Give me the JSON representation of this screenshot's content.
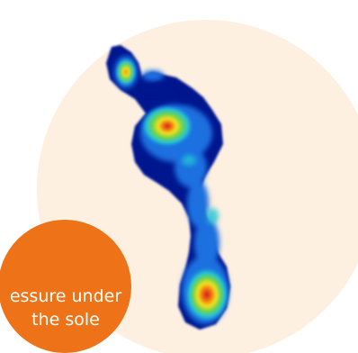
{
  "colors": {
    "background_disc": "#fdf0e1",
    "badge": "#ee7318",
    "badge_text": "#ffffff",
    "heatmap_scale": [
      "#05148f",
      "#1a6fe0",
      "#23c4d6",
      "#6dd34a",
      "#f6e21b",
      "#f07a14",
      "#d81414"
    ]
  },
  "image": {
    "subject": "foot pressure heatmap"
  },
  "badge": {
    "line1": "essure under",
    "line2": "the sole"
  }
}
